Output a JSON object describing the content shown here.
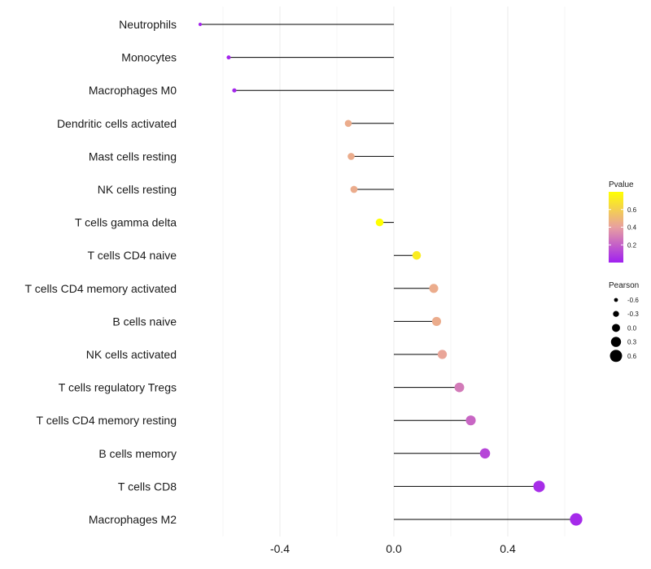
{
  "chart_data": {
    "type": "lollipop",
    "x_ticks": [
      -0.4,
      0.0,
      0.4
    ],
    "x_tick_labels": [
      "-0.4",
      "0.0",
      "0.4"
    ],
    "xlim": [
      -0.78,
      0.7
    ],
    "grid": true,
    "categories": [
      "Neutrophils",
      "Monocytes",
      "Macrophages M0",
      "Dendritic cells activated",
      "Mast cells resting",
      "NK cells resting",
      "T cells gamma delta",
      "T cells CD4 naive",
      "T cells CD4 memory activated",
      "B cells naive",
      "NK cells activated",
      "T cells regulatory  Tregs ",
      "T cells CD4 memory resting",
      "B cells memory",
      "T cells CD8",
      "Macrophages M2"
    ],
    "pearson": [
      -0.68,
      -0.58,
      -0.56,
      -0.16,
      -0.15,
      -0.14,
      -0.05,
      0.08,
      0.14,
      0.15,
      0.17,
      0.23,
      0.27,
      0.32,
      0.51,
      0.64
    ],
    "pvalue": [
      0.02,
      0.02,
      0.02,
      0.45,
      0.45,
      0.45,
      0.8,
      0.72,
      0.45,
      0.45,
      0.42,
      0.28,
      0.22,
      0.12,
      0.04,
      0.03
    ],
    "legend": {
      "color_title": "Pvalue",
      "color_ticks": [
        0.2,
        0.4,
        0.6
      ],
      "color_tick_labels": [
        "0.2",
        "0.4",
        "0.6"
      ],
      "color_range": [
        0.0,
        0.8
      ],
      "color_low": "#a020f0",
      "color_mid": "#e8a0a0",
      "color_high": "#ffff00",
      "size_title": "Pearson",
      "size_values": [
        -0.6,
        -0.3,
        0.0,
        0.3,
        0.6
      ],
      "size_labels": [
        "-0.6",
        "-0.3",
        "0.0",
        "0.3",
        "0.6"
      ],
      "placement": "right"
    }
  }
}
